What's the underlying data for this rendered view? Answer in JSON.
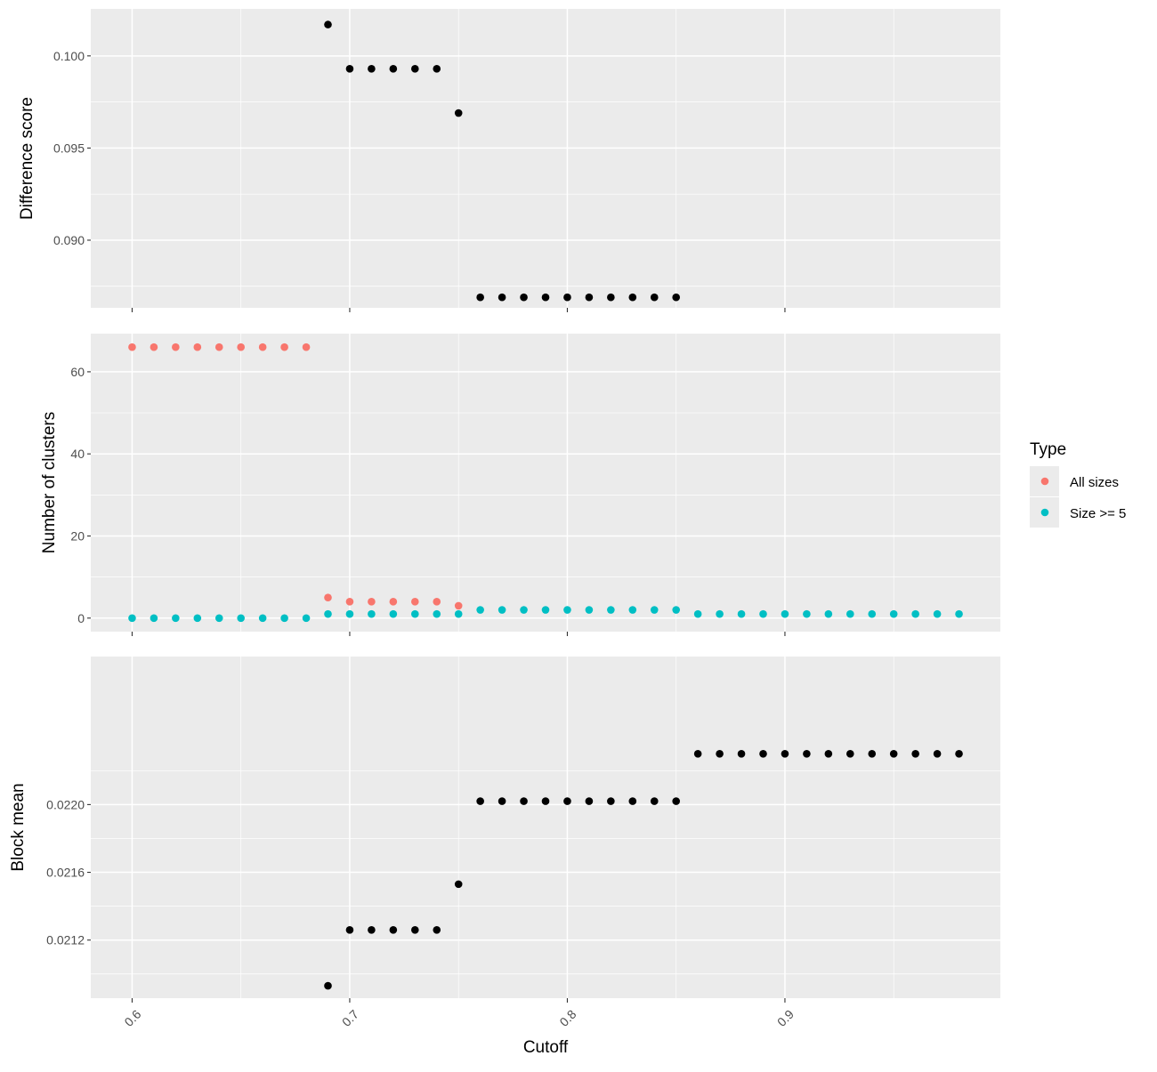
{
  "chart_data": {
    "type": "scatter",
    "x_axis": {
      "title": "Cutoff",
      "range": [
        0.581,
        0.999
      ],
      "major_ticks": [
        0.6,
        0.7,
        0.8,
        0.9
      ],
      "major_tick_labels": [
        "0.6",
        "0.7",
        "0.8",
        "0.9"
      ],
      "minor_ticks": [
        0.65,
        0.75,
        0.85,
        0.95
      ]
    },
    "legend": {
      "title": "Type",
      "entries": [
        {
          "label": "All sizes",
          "color": "#F8766D"
        },
        {
          "label": "Size >= 5",
          "color": "#00BFC4"
        }
      ]
    },
    "panels": [
      {
        "id": "difference",
        "ylabel": "Difference score",
        "ylim": [
          0.08633,
          0.10255
        ],
        "major_ticks": [
          0.09,
          0.095,
          0.1
        ],
        "major_tick_labels": [
          "0.090",
          "0.095",
          "0.100"
        ],
        "minor_ticks": [
          0.0875,
          0.0925,
          0.0975
        ],
        "series": [
          {
            "name": "",
            "color": "#000000",
            "x": [
              0.69,
              0.7,
              0.71,
              0.72,
              0.73,
              0.74,
              0.75,
              0.76,
              0.77,
              0.78,
              0.79,
              0.8,
              0.81,
              0.82,
              0.83,
              0.84,
              0.85
            ],
            "y": [
              0.1017,
              0.0993,
              0.0993,
              0.0993,
              0.0993,
              0.0993,
              0.0969,
              0.0869,
              0.0869,
              0.0869,
              0.0869,
              0.0869,
              0.0869,
              0.0869,
              0.0869,
              0.0869,
              0.0869
            ]
          }
        ]
      },
      {
        "id": "clusters",
        "ylabel": "Number of clusters",
        "ylim": [
          -3.3,
          69.3
        ],
        "major_ticks": [
          0,
          20,
          40,
          60
        ],
        "major_tick_labels": [
          "0",
          "20",
          "40",
          "60"
        ],
        "minor_ticks": [
          10,
          30,
          50
        ],
        "series": [
          {
            "name": "All sizes",
            "color": "#F8766D",
            "x": [
              0.6,
              0.61,
              0.62,
              0.63,
              0.64,
              0.65,
              0.66,
              0.67,
              0.68,
              0.69,
              0.7,
              0.71,
              0.72,
              0.73,
              0.74,
              0.75
            ],
            "y": [
              66,
              66,
              66,
              66,
              66,
              66,
              66,
              66,
              66,
              5,
              4,
              4,
              4,
              4,
              4,
              3
            ]
          },
          {
            "name": "Size >= 5",
            "color": "#00BFC4",
            "x": [
              0.6,
              0.61,
              0.62,
              0.63,
              0.64,
              0.65,
              0.66,
              0.67,
              0.68,
              0.69,
              0.7,
              0.71,
              0.72,
              0.73,
              0.74,
              0.75,
              0.76,
              0.77,
              0.78,
              0.79,
              0.8,
              0.81,
              0.82,
              0.83,
              0.84,
              0.85,
              0.86,
              0.87,
              0.88,
              0.89,
              0.9,
              0.91,
              0.92,
              0.93,
              0.94,
              0.95,
              0.96,
              0.97,
              0.98
            ],
            "y": [
              0,
              0,
              0,
              0,
              0,
              0,
              0,
              0,
              0,
              1,
              1,
              1,
              1,
              1,
              1,
              1,
              2,
              2,
              2,
              2,
              2,
              2,
              2,
              2,
              2,
              2,
              1,
              1,
              1,
              1,
              1,
              1,
              1,
              1,
              1,
              1,
              1,
              1,
              1
            ]
          }
        ]
      },
      {
        "id": "block",
        "ylabel": "Block mean",
        "ylim": [
          0.020857,
          0.022874
        ],
        "major_ticks": [
          0.0212,
          0.0216,
          0.022
        ],
        "major_tick_labels": [
          "0.0212",
          "0.0216",
          "0.0220"
        ],
        "minor_ticks": [
          0.021,
          0.0214,
          0.0218,
          0.0222
        ],
        "series": [
          {
            "name": "",
            "color": "#000000",
            "x": [
              0.69,
              0.7,
              0.71,
              0.72,
              0.73,
              0.74,
              0.75,
              0.76,
              0.77,
              0.78,
              0.79,
              0.8,
              0.81,
              0.82,
              0.83,
              0.84,
              0.85,
              0.86,
              0.87,
              0.88,
              0.89,
              0.9,
              0.91,
              0.92,
              0.93,
              0.94,
              0.95,
              0.96,
              0.97,
              0.98
            ],
            "y": [
              0.02093,
              0.02126,
              0.02126,
              0.02126,
              0.02126,
              0.02126,
              0.02153,
              0.02202,
              0.02202,
              0.02202,
              0.02202,
              0.02202,
              0.02202,
              0.02202,
              0.02202,
              0.02202,
              0.02202,
              0.0223,
              0.0223,
              0.0223,
              0.0223,
              0.0223,
              0.0223,
              0.0223,
              0.0223,
              0.0223,
              0.0223,
              0.0223,
              0.0223,
              0.0223
            ]
          }
        ]
      }
    ]
  }
}
